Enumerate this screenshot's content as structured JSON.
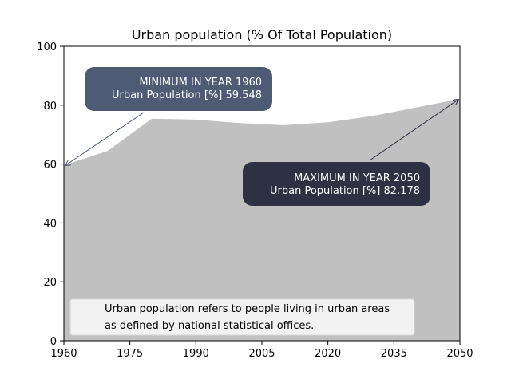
{
  "chart_data": {
    "type": "area",
    "title": "Urban population (% Of Total Population)",
    "xlabel": "",
    "ylabel": "",
    "x": [
      1960,
      1970,
      1980,
      1990,
      2000,
      2010,
      2020,
      2030,
      2040,
      2050
    ],
    "values": [
      59.548,
      64.5,
      75.4,
      75.1,
      73.9,
      73.2,
      74.2,
      76.3,
      79.2,
      82.178
    ],
    "xlim": [
      1960,
      2050
    ],
    "ylim": [
      0,
      100
    ],
    "x_ticks": [
      "1960",
      "1975",
      "1990",
      "2005",
      "2020",
      "2035",
      "2050"
    ],
    "y_ticks": [
      "0",
      "20",
      "40",
      "60",
      "80",
      "100"
    ],
    "grid": false,
    "colors": {
      "area": "#bfc0bf",
      "min_box": "#4d5b75",
      "max_box": "#2e3044",
      "note_box": "#f2f2f2"
    },
    "annotations": {
      "min": {
        "x": 1960,
        "y": 59.548,
        "line1": "MINIMUM IN YEAR  1960",
        "line2": "Urban Population [%]  59.548"
      },
      "max": {
        "x": 2050,
        "y": 82.178,
        "line1": "MAXIMUM IN YEAR  2050",
        "line2": "Urban Population [%]  82.178"
      }
    },
    "note": {
      "line1": "Urban population refers to people living in urban areas",
      "line2": "as defined by national statistical offices."
    }
  }
}
